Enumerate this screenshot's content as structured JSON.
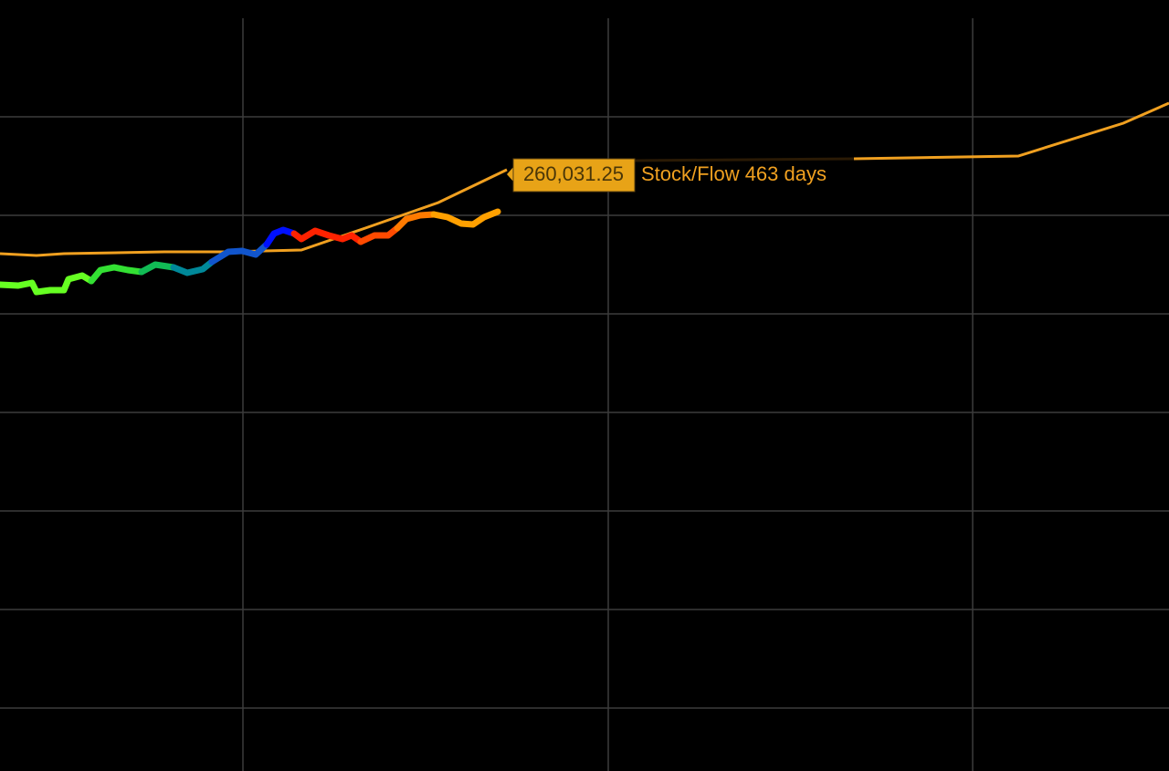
{
  "chart_data": {
    "type": "line",
    "annotation": {
      "label": "260,031.25",
      "text": "Stock/Flow 463 days"
    }
  }
}
